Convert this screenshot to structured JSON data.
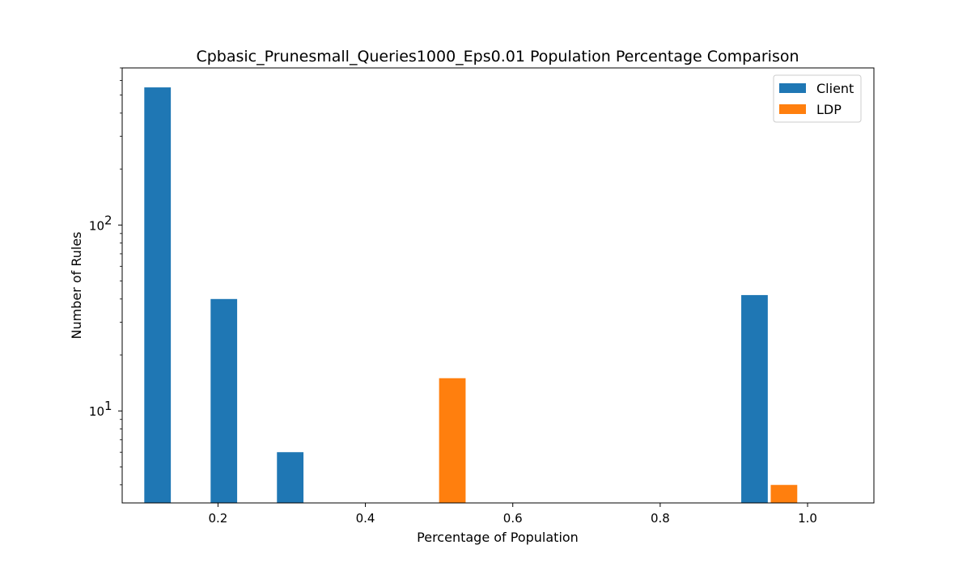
{
  "chart_data": {
    "type": "bar",
    "title": "Cpbasic_Prunesmall_Queries1000_Eps0.01 Population Percentage Comparison",
    "xlabel": "Percentage of Population",
    "ylabel": "Number of Rules",
    "yscale": "log",
    "xlim": [
      0.07,
      1.09
    ],
    "ylim": [
      3.2,
      700
    ],
    "grid": false,
    "legend_position": "top-right",
    "x_ticks": [
      {
        "value": 0.2,
        "label": "0.2"
      },
      {
        "value": 0.4,
        "label": "0.4"
      },
      {
        "value": 0.6,
        "label": "0.6"
      },
      {
        "value": 0.8,
        "label": "0.8"
      },
      {
        "value": 1.0,
        "label": "1.0"
      }
    ],
    "y_ticks": [
      {
        "value": 10,
        "base": "10",
        "exp": "1"
      },
      {
        "value": 100,
        "base": "10",
        "exp": "2"
      }
    ],
    "bin_width": 0.09,
    "series": [
      {
        "name": "Client",
        "color": "#1f77b4",
        "bars": [
          {
            "x": 0.1,
            "value": 550
          },
          {
            "x": 0.19,
            "value": 40
          },
          {
            "x": 0.28,
            "value": 6
          },
          {
            "x": 0.91,
            "value": 42
          }
        ]
      },
      {
        "name": "LDP",
        "color": "#ff7f0e",
        "bars": [
          {
            "x": 0.5,
            "value": 15
          },
          {
            "x": 0.95,
            "value": 4
          }
        ]
      }
    ]
  }
}
